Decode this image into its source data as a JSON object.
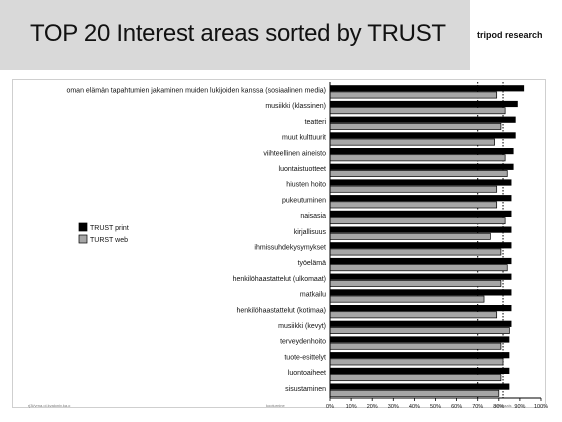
{
  "slide": {
    "title": "TOP 20 Interest areas sorted by TRUST",
    "brand": "tripod research",
    "footnotes": [
      "rj3i/vrna.oi.kvaloniv.ka.o",
      "kooturnine",
      "drumaals"
    ]
  },
  "colors": {
    "print": "#000000",
    "web": "#a6a6a6",
    "median_line": "#000000"
  },
  "chart_data": {
    "type": "bar",
    "orientation": "horizontal",
    "title": "TOP 20 Interest areas sorted by TRUST",
    "xlim": [
      0,
      100
    ],
    "x_ticks": [
      "0%",
      "10%",
      "20%",
      "30%",
      "40%",
      "50%",
      "60%",
      "70%",
      "80%",
      "90%",
      "100%"
    ],
    "grid": false,
    "legend_position": "left",
    "reference_lines": [
      70,
      82
    ],
    "categories": [
      "oman elämän tapahtumien jakaminen muiden lukijoiden kanssa (sosiaalinen media)",
      "musiikki (klassinen)",
      "teatteri",
      "muut kulttuurit",
      "viihteellinen aineisto",
      "luontaistuotteet",
      "hiusten hoito",
      "pukeutuminen",
      "naisasia",
      "kirjallisuus",
      "ihmissuhdekysymykset",
      "työelämä",
      "henkilöhaastattelut (ulkomaat)",
      "matkailu",
      "henkilöhaastattelut (kotimaa)",
      "musiikki (kevyt)",
      "terveydenhoito",
      "tuote-esittelyt",
      "luontoaiheet",
      "sisustaminen"
    ],
    "series": [
      {
        "name": "TRUST print",
        "values": [
          92,
          89,
          88,
          88,
          87,
          87,
          86,
          86,
          86,
          86,
          86,
          86,
          86,
          86,
          86,
          86,
          85,
          85,
          85,
          85
        ]
      },
      {
        "name": "TURST web",
        "values": [
          79,
          83,
          81,
          78,
          83,
          84,
          79,
          79,
          83,
          76,
          81,
          84,
          81,
          73,
          79,
          85,
          81,
          82,
          81,
          80
        ]
      }
    ]
  }
}
